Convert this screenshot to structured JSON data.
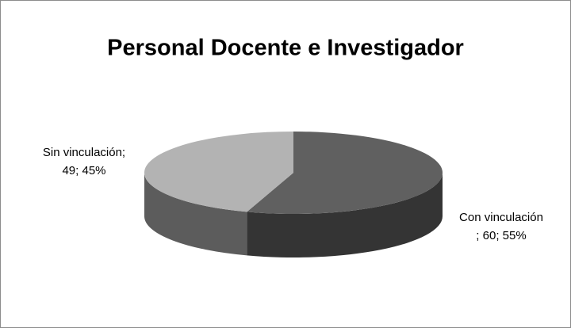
{
  "chart_data": {
    "type": "pie",
    "title": "Personal Docente e Investigador",
    "categories": [
      "Con vinculación",
      "Sin vinculación;"
    ],
    "values": [
      60,
      49
    ],
    "value_labels": [
      "; 60; 55%",
      "49; 45%"
    ],
    "colors": [
      "#606060",
      "#b3b3b3"
    ],
    "side_colors": [
      "#343434",
      "#5c5c5c"
    ]
  }
}
